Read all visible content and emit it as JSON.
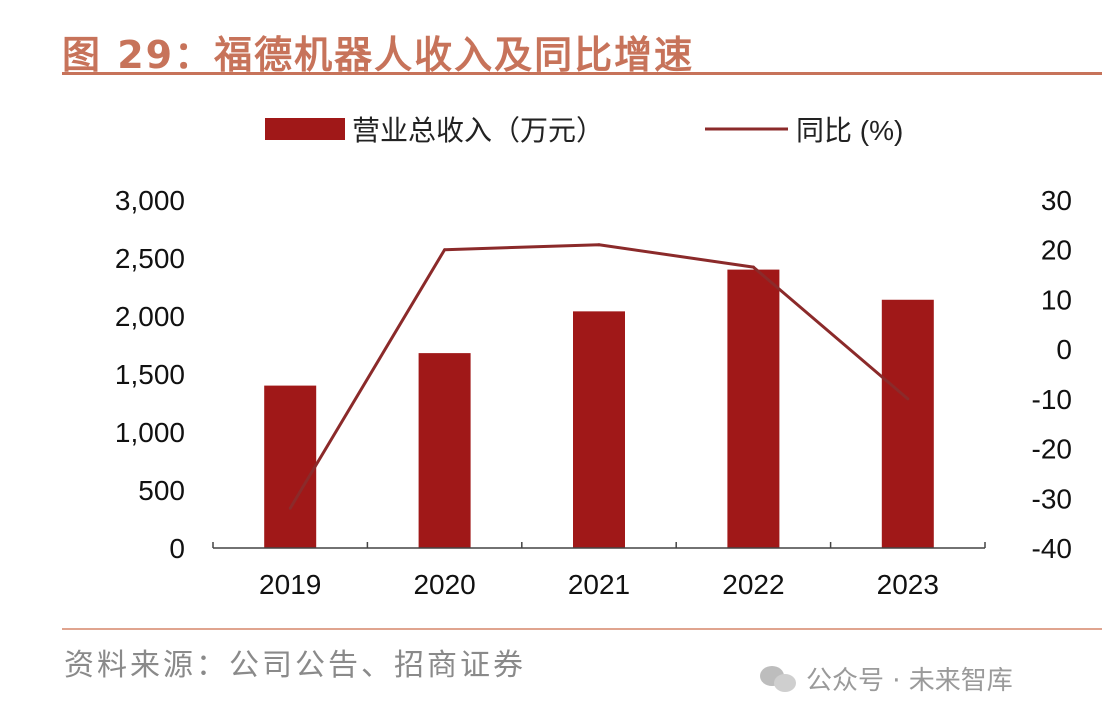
{
  "figure": {
    "title": "图 29：福德机器人收入及同比增速",
    "source": "资料来源：公司公告、招商证券",
    "watermark": "公众号 · 未来智库"
  },
  "colors": {
    "bar": "#A01818",
    "line": "#8B2A2A",
    "accent": "#C7735A",
    "axis": "#444444"
  },
  "chart_data": {
    "type": "bar+line",
    "title": "福德机器人收入及同比增速",
    "categories": [
      "2019",
      "2020",
      "2021",
      "2022",
      "2023"
    ],
    "series": [
      {
        "name": "营业总收入（万元）",
        "type": "bar",
        "axis": "left",
        "values": [
          1400,
          1680,
          2040,
          2400,
          2140
        ]
      },
      {
        "name": "同比 (%)",
        "type": "line",
        "axis": "right",
        "values": [
          -32,
          20,
          21,
          16.5,
          -10
        ]
      }
    ],
    "y_left": {
      "min": 0,
      "max": 3000,
      "ticks": [
        "0",
        "500",
        "1,000",
        "1,500",
        "2,000",
        "2,500",
        "3,000"
      ]
    },
    "y_right": {
      "min": -40,
      "max": 30,
      "ticks": [
        "-40",
        "-30",
        "-20",
        "-10",
        "0",
        "10",
        "20",
        "30"
      ]
    },
    "legend": [
      "营业总收入（万元）",
      "同比 (%)"
    ],
    "legend_position": "top",
    "grid": false
  }
}
